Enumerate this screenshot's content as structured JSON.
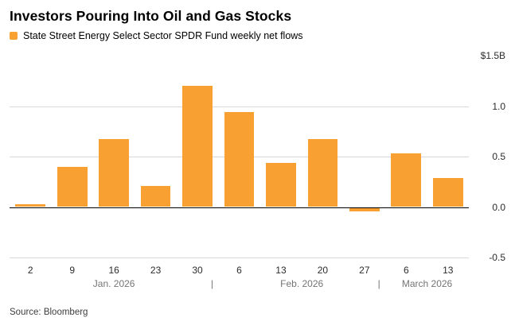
{
  "header": {
    "title": "Investors Pouring Into Oil and Gas Stocks"
  },
  "legend": {
    "label": "State Street Energy Select Sector SPDR Fund weekly net flows",
    "swatch_color": "#F8A132"
  },
  "source": {
    "text": "Source: Bloomberg"
  },
  "chart_data": {
    "type": "bar",
    "categories": [
      "2",
      "9",
      "16",
      "23",
      "30",
      "6",
      "13",
      "20",
      "27",
      "6",
      "13"
    ],
    "values": [
      0.03,
      0.4,
      0.67,
      0.21,
      1.2,
      0.94,
      0.44,
      0.67,
      -0.04,
      0.53,
      0.29
    ],
    "month_groups": [
      {
        "label": "Jan. 2026",
        "start": 0,
        "end": 4
      },
      {
        "label": "Feb. 2026",
        "start": 5,
        "end": 8
      },
      {
        "label": "March 2026",
        "start": 9,
        "end": 10
      }
    ],
    "separator": "|",
    "y_ticks": [
      {
        "label": "$1.5B",
        "value": 1.5,
        "line": false
      },
      {
        "label": "1.0",
        "value": 1.0
      },
      {
        "label": "0.5",
        "value": 0.5
      },
      {
        "label": "0.0",
        "value": 0.0
      },
      {
        "label": "-0.5",
        "value": -0.5
      }
    ],
    "ylim": [
      -0.5,
      1.5
    ],
    "bar_color": "#F8A132",
    "zero_line_color": "#000000",
    "grid_color": "#d9d9d9",
    "legend_position": "top-left",
    "grid": true
  }
}
